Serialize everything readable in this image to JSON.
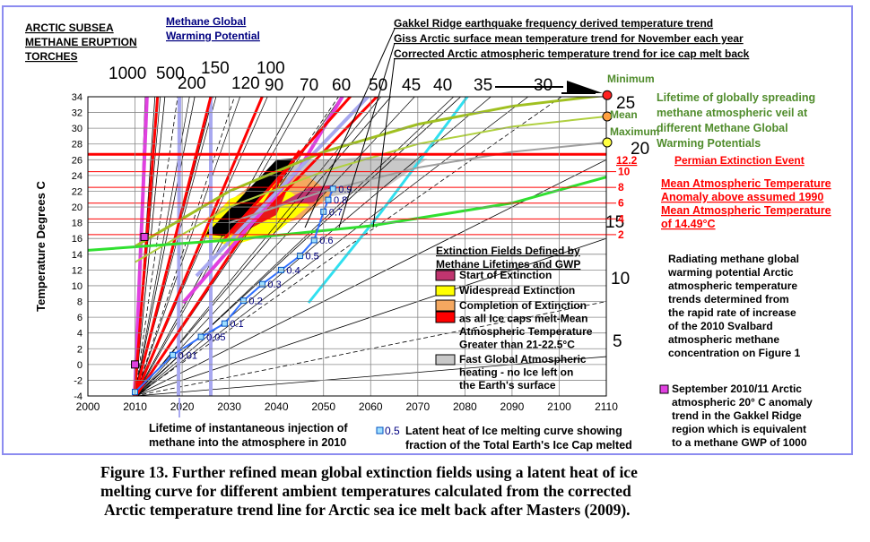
{
  "chart_data": {
    "type": "line",
    "xlim": [
      2000,
      2110
    ],
    "ylim": [
      -4,
      34
    ],
    "x_ticks": [
      2000,
      2010,
      2020,
      2030,
      2040,
      2050,
      2060,
      2070,
      2080,
      2090,
      2100,
      2110
    ],
    "y_ticks": [
      -4,
      -2,
      0,
      2,
      4,
      6,
      8,
      10,
      12,
      14,
      16,
      18,
      20,
      22,
      24,
      26,
      28,
      30,
      32,
      34
    ],
    "ylabel": "Temperature Degrees C",
    "grid": true,
    "annotations": {
      "torches": "ARCTIC SUBSEA METHANE ERUPTION TORCHES",
      "gwp_title": "Methane Global Warming Potential",
      "trend1": "Gakkel Ridge earthquake frequency derived temperature trend",
      "trend2": "Giss Arctic surface mean temperature trend for November each year",
      "trend3": "Corrected Arctic atmospheric temperature trend for ice cap melt back",
      "lifetime_title": "Lifetime of globally spreading methane atmospheric veil at different Methane Global Warming Potentials",
      "minimum": "Minimum",
      "mean": "Mean",
      "maximum": "Maximum",
      "permian_value": "12.2",
      "permian": "Permian Extinction Event",
      "anomaly_text": "Mean Atmospheric Temperature Anomaly above assumed 1990 Mean Atmospheric Temperature of 14.49°C",
      "radiating": "Radiating methane global warming potential Arctic atmospheric temperature trends determined from the rapid rate of increase of the 2010 Svalbard atmospheric methane concentration on Figure 1",
      "svalbard_legend": "September 2010/11 Arctic atmospheric 20° C anomaly trend in the Gakkel Ridge region which is equivalent to a methane GWP of 1000",
      "instant_injection": "Lifetime of instantaneous injection of methane into the atmosphere in 2010",
      "latent_legend_value": "0.5",
      "latent_legend": "Latent heat of Ice melting curve showing fraction of the Total Earth's Ice Cap melted"
    },
    "gwp_labels": [
      "1000",
      "500",
      "200",
      "150",
      "120",
      "100",
      "90",
      "70",
      "60",
      "50",
      "45",
      "40",
      "35",
      "30",
      "25",
      "20",
      "15",
      "10",
      "5"
    ],
    "anomaly_levels": [
      {
        "value": 2,
        "y": 16.49
      },
      {
        "value": 4,
        "y": 18.49
      },
      {
        "value": 6,
        "y": 20.49
      },
      {
        "value": 8,
        "y": 22.49
      },
      {
        "value": 10,
        "y": 24.49
      },
      {
        "value": 12.2,
        "y": 26.69
      }
    ],
    "extinction_legend": {
      "title": "Extinction Fields Defined by Methane Lifetimes and GWP",
      "items": [
        {
          "label": "Start of Extinction",
          "color": "#c0356f"
        },
        {
          "label": "Widespread Extinction",
          "color": "#ffff00"
        },
        {
          "label": "Completion of Extinction as all Ice caps melt-Mean Atmospheric Temperature Greater than 21-22.5°C",
          "color": "#f5a860"
        },
        {
          "label": "Fast Global Atmospheric heating - no Ice left on the Earth's surface",
          "color": "#c8c8c8"
        }
      ]
    },
    "ice_melt_curve": {
      "x": [
        2010,
        2018,
        2024,
        2029,
        2033,
        2037,
        2041,
        2045,
        2048,
        2050,
        2051,
        2052
      ],
      "y": [
        -3.5,
        1.2,
        3.5,
        5.2,
        8.1,
        10.2,
        12.0,
        13.8,
        15.8,
        19.4,
        20.9,
        22.3
      ],
      "labels": [
        "",
        "0.01",
        "0.05",
        "0.1",
        "0.2",
        "0.3",
        "0.4",
        "0.5",
        "0.6",
        "0.7",
        "0.8",
        "0.9"
      ]
    },
    "series": [
      {
        "name": "Minimum",
        "x": [
          2010,
          2030,
          2050,
          2070,
          2090,
          2110
        ],
        "y": [
          15.0,
          22.0,
          27.0,
          30.5,
          32.8,
          34.2
        ]
      },
      {
        "name": "Mean",
        "x": [
          2010,
          2030,
          2050,
          2070,
          2090,
          2110
        ],
        "y": [
          13.0,
          20.0,
          24.5,
          28.0,
          30.2,
          31.5
        ]
      },
      {
        "name": "Maximum",
        "x": [
          2030,
          2050,
          2070,
          2090,
          2110
        ],
        "y": [
          18.0,
          22.0,
          25.0,
          27.0,
          28.2
        ]
      },
      {
        "name": "Giss",
        "x": [
          2000,
          2030,
          2060,
          2090,
          2110
        ],
        "y": [
          14.5,
          15.8,
          17.6,
          20.5,
          23.8
        ]
      }
    ],
    "colors": {
      "frame": "#8c8cf0",
      "link_blue": "#000080",
      "red": "#ff0000",
      "green": "#508c2c",
      "magenta": "#e040e0",
      "lavender": "#a8a8f0",
      "cyan": "#30e0f0",
      "olive": "#a0c020",
      "bright_green": "#30e030"
    }
  },
  "caption": {
    "line1": "Figure 13. Further refined mean global extinction fields using a latent heat of ice",
    "line2": "melting curve for different ambient temperatures calculated from the corrected",
    "line3": "Arctic temperature trend line for Arctic sea ice melt back after Masters (2009)."
  }
}
